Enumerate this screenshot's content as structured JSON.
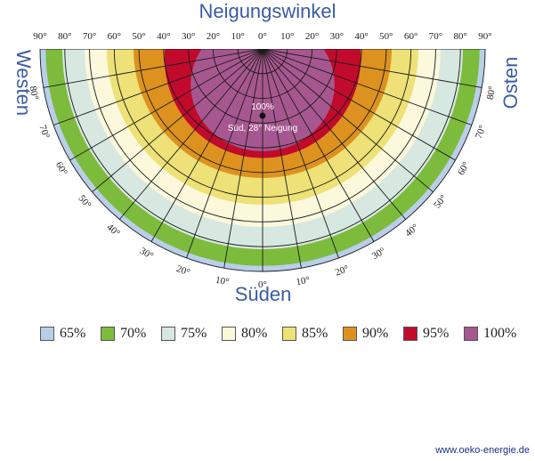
{
  "header": {
    "title": "Neigungswinkel"
  },
  "labels": {
    "west": "Westen",
    "east": "Osten",
    "south": "Süden"
  },
  "footer": {
    "url": "www.oeko-energie.de"
  },
  "chart_data": {
    "type": "heatmap",
    "title": "Neigungswinkel",
    "top_ticks": [
      "90°",
      "80°",
      "70°",
      "60°",
      "50°",
      "40°",
      "30°",
      "20°",
      "10°",
      "0°",
      "10°",
      "20°",
      "30°",
      "40°",
      "50°",
      "60°",
      "70°",
      "80°",
      "90°"
    ],
    "arc_ticks_left": [
      "80°",
      "70°",
      "60°",
      "50°",
      "40°",
      "30°",
      "20°",
      "10°"
    ],
    "arc_ticks_right": [
      "80°",
      "70°",
      "60°",
      "50°",
      "40°",
      "30°",
      "20°",
      "10°"
    ],
    "arc_tick_center": "0°",
    "levels": [
      {
        "label": "65%",
        "color": "#b9cfe9"
      },
      {
        "label": "70%",
        "color": "#7dbb3c"
      },
      {
        "label": "75%",
        "color": "#d7e8e0"
      },
      {
        "label": "80%",
        "color": "#fbf8dc"
      },
      {
        "label": "85%",
        "color": "#ede177"
      },
      {
        "label": "90%",
        "color": "#dd921f"
      },
      {
        "label": "95%",
        "color": "#c10a2c"
      },
      {
        "label": "100%",
        "color": "#a7578f"
      }
    ],
    "zone_outer_fraction": [
      1.0,
      0.975,
      0.9,
      0.8,
      0.7,
      0.58,
      0.45,
      0.33
    ],
    "optimum": {
      "value_label": "100%",
      "text": "Süd, 28° Neigung"
    }
  }
}
